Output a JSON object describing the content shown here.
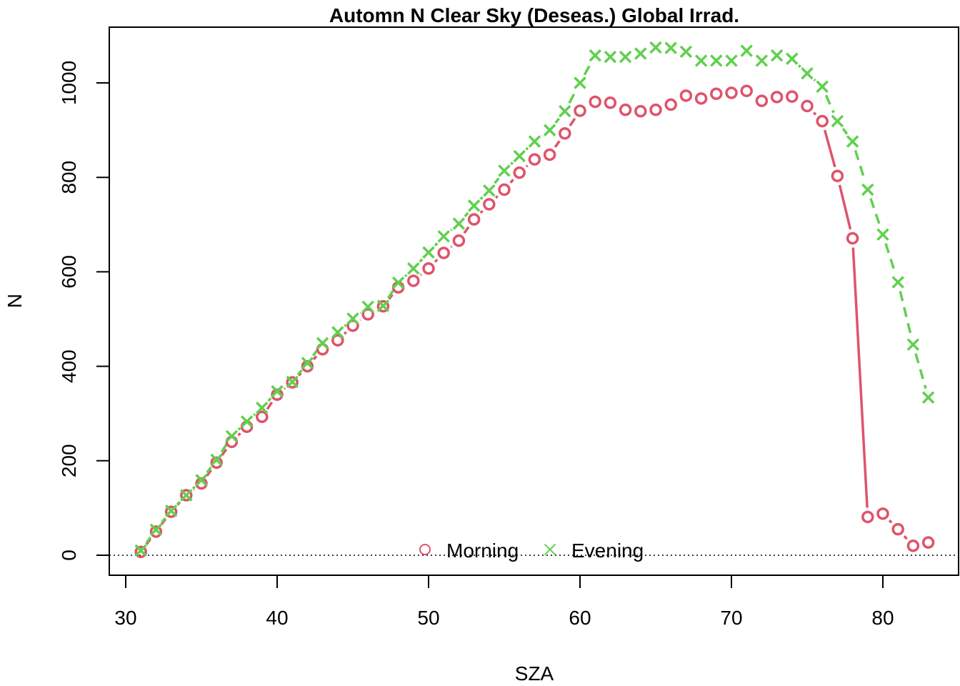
{
  "chart_data": {
    "type": "line",
    "title": "Automn N Clear Sky (Deseas.) Global Irrad.",
    "xlabel": "SZA",
    "ylabel": "N",
    "xlim": [
      30,
      85
    ],
    "ylim": [
      -40,
      1110
    ],
    "xticks": [
      30,
      40,
      50,
      60,
      70,
      80
    ],
    "yticks": [
      0,
      200,
      400,
      600,
      800,
      1000
    ],
    "reference_line": {
      "y": 0,
      "style": "dotted"
    },
    "legend_position": "bottom-center",
    "series": [
      {
        "name": "Morning",
        "color": "#DF536B",
        "marker": "circle",
        "line_style": "solid",
        "x": [
          31,
          32,
          33,
          34,
          35,
          36,
          37,
          38,
          39,
          40,
          41,
          42,
          43,
          44,
          45,
          46,
          47,
          48,
          49,
          50,
          51,
          52,
          53,
          54,
          55,
          56,
          57,
          58,
          59,
          60,
          61,
          62,
          63,
          64,
          65,
          66,
          67,
          68,
          69,
          70,
          71,
          72,
          73,
          74,
          75,
          76,
          77,
          78,
          79,
          80,
          81,
          82,
          83
        ],
        "values": [
          7,
          50,
          92,
          127,
          152,
          196,
          240,
          272,
          293,
          340,
          366,
          400,
          436,
          455,
          486,
          510,
          527,
          567,
          581,
          607,
          640,
          666,
          711,
          743,
          774,
          810,
          838,
          848,
          893,
          941,
          960,
          958,
          943,
          940,
          943,
          954,
          973,
          967,
          977,
          979,
          983,
          962,
          970,
          971,
          951,
          919,
          803,
          671,
          81,
          88,
          55,
          20,
          27
        ]
      },
      {
        "name": "Evening",
        "color": "#61D04F",
        "marker": "cross",
        "line_style": "dashed",
        "x": [
          31,
          32,
          33,
          34,
          35,
          36,
          37,
          38,
          39,
          40,
          41,
          42,
          43,
          44,
          45,
          46,
          47,
          48,
          49,
          50,
          51,
          52,
          53,
          54,
          55,
          56,
          57,
          58,
          59,
          60,
          61,
          62,
          63,
          64,
          65,
          66,
          67,
          68,
          69,
          70,
          71,
          72,
          73,
          74,
          75,
          76,
          77,
          78,
          79,
          80,
          81,
          82,
          83
        ],
        "values": [
          10,
          54,
          94,
          127,
          159,
          202,
          252,
          283,
          312,
          347,
          367,
          407,
          449,
          472,
          501,
          526,
          528,
          577,
          607,
          641,
          675,
          702,
          740,
          772,
          814,
          845,
          876,
          900,
          940,
          1000,
          1058,
          1055,
          1055,
          1062,
          1075,
          1074,
          1066,
          1047,
          1047,
          1047,
          1068,
          1047,
          1058,
          1051,
          1020,
          992,
          919,
          876,
          774,
          679,
          578,
          446,
          334
        ]
      }
    ]
  }
}
